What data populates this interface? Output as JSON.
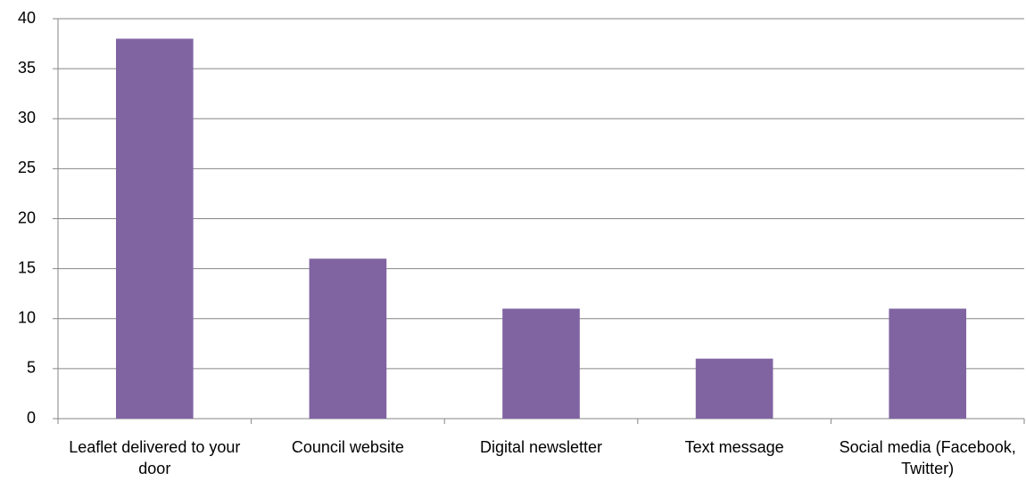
{
  "chart_data": {
    "type": "bar",
    "categories": [
      "Leaflet delivered to your door",
      "Council website",
      "Digital newsletter",
      "Text message",
      "Social media (Facebook, Twitter)"
    ],
    "values": [
      38,
      16,
      11,
      6,
      11
    ],
    "color": "#8064a2",
    "ylim": [
      0,
      40
    ],
    "yticks": [
      0,
      5,
      10,
      15,
      20,
      25,
      30,
      35,
      40
    ],
    "grid": true
  }
}
